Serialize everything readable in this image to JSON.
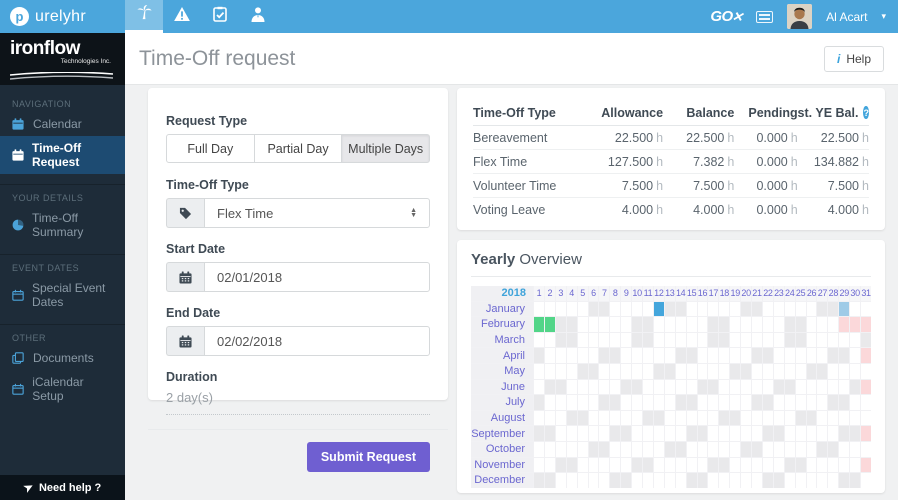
{
  "colors": {
    "topbar_blue": "#4ba6dc",
    "active_nav_blue": "#1d4b72",
    "accent_purple": "#6f5fd1",
    "cell_green": "#52d588",
    "cell_blue": "#44a6dc",
    "cell_light_blue": "#9fcbe7",
    "cell_weekend": "#e9e9eb",
    "cell_invalid": "#fbd8da"
  },
  "icons": {
    "brand": "purelyhr-logo-icon",
    "tabs": [
      "palm-tree-icon",
      "warning-icon",
      "clipboard-check-icon",
      "user-stats-icon"
    ],
    "top_right": [
      "keyboard-icon",
      "avatar",
      "chevron-down-icon"
    ]
  },
  "topbar": {
    "brand_letter": "p",
    "brand_text": "urelyhr",
    "go_logo": "GO",
    "go_x": "✕",
    "user_name": "Al Acart",
    "caret": "▾"
  },
  "sidebar": {
    "company_name": "ironflow",
    "company_sub": "Technologies Inc.",
    "sections": [
      {
        "header": "NAVIGATION",
        "items": [
          {
            "label": "Calendar"
          },
          {
            "label": "Time-Off Request",
            "active": true
          }
        ]
      },
      {
        "header": "YOUR DETAILS",
        "items": [
          {
            "label": "Time-Off Summary"
          }
        ]
      },
      {
        "header": "EVENT DATES",
        "items": [
          {
            "label": "Special Event Dates"
          }
        ]
      },
      {
        "header": "OTHER",
        "items": [
          {
            "label": "Documents"
          },
          {
            "label": "iCalendar Setup"
          }
        ]
      }
    ],
    "need_help": "Need help ?",
    "plane_glyph": "➤"
  },
  "header": {
    "title": "Time-Off request",
    "help_icon": "i",
    "help_label": "Help"
  },
  "form": {
    "request_type": {
      "label": "Request Type",
      "options": [
        "Full Day",
        "Partial Day",
        "Multiple Days"
      ],
      "selected": "Multiple Days"
    },
    "timeoff_type": {
      "label": "Time-Off Type",
      "value": "Flex Time"
    },
    "start_date": {
      "label": "Start Date",
      "value": "02/01/2018"
    },
    "end_date": {
      "label": "End Date",
      "value": "02/02/2018"
    },
    "duration": {
      "label": "Duration",
      "value": "2 day(s)"
    },
    "submit_label": "Submit Request"
  },
  "balances": {
    "columns": [
      "Time-Off Type",
      "Allowance",
      "Balance",
      "Pending",
      "Est. YE Bal."
    ],
    "unit": "h",
    "help_glyph": "?",
    "rows": [
      {
        "type": "Bereavement",
        "allowance": "22.500",
        "balance": "22.500",
        "pending": "0.000",
        "est": "22.500"
      },
      {
        "type": "Flex Time",
        "allowance": "127.500",
        "balance": "7.382",
        "pending": "0.000",
        "est": "134.882"
      },
      {
        "type": "Volunteer Time",
        "allowance": "7.500",
        "balance": "7.500",
        "pending": "0.000",
        "est": "7.500"
      },
      {
        "type": "Voting Leave",
        "allowance": "4.000",
        "balance": "4.000",
        "pending": "0.000",
        "est": "4.000"
      }
    ]
  },
  "yearly": {
    "title_bold": "Yearly",
    "title_rest": " Overview",
    "year": "2018",
    "day_count": 31,
    "cell_colors": {
      ".": "#ffffff",
      "s": "#e9e9eb",
      "x": "#fbd8da",
      "B": "#44a6dc",
      "b": "#9fcbe7",
      "g": "#52d588"
    },
    "months": [
      {
        "name": "January",
        "cells": ".....ss....Bss.....ss.....ssb.."
      },
      {
        "name": "February",
        "cells": "ggss.....ss.....ss.....ss...xxx"
      },
      {
        "name": "March",
        "cells": "..ss.....ss.....ss.....ss.....s"
      },
      {
        "name": "April",
        "cells": "s.....ss.....ss.....ss.....ss.x"
      },
      {
        "name": "May",
        "cells": "....ss.....ss.....ss.....ss...."
      },
      {
        "name": "June",
        "cells": ".ss.....ss.....ss.....ss.....sx"
      },
      {
        "name": "July",
        "cells": "s.....ss.....ss.....ss.....ss.."
      },
      {
        "name": "August",
        "cells": "...ss.....ss.....ss.....ss....."
      },
      {
        "name": "September",
        "cells": "ss.....ss.....ss.....ss.....ssx"
      },
      {
        "name": "October",
        "cells": ".....ss.....ss.....ss.....ss..."
      },
      {
        "name": "November",
        "cells": "..ss.....ss.....ss.....ss.....x"
      },
      {
        "name": "December",
        "cells": "ss.....ss.....ss.....ss.....ss."
      }
    ]
  }
}
